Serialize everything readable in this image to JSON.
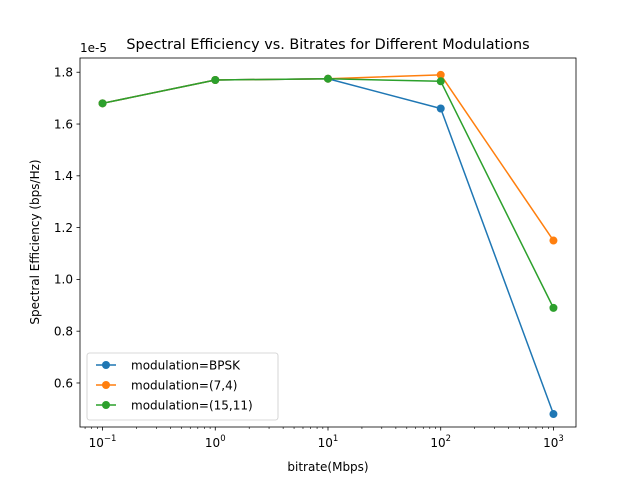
{
  "chart_data": {
    "type": "line",
    "title": "Spectral Efficiency vs. Bitrates for Different Modulations",
    "xlabel": "bitrate(Mbps)",
    "ylabel": "Spectral Efficiency (bps/Hz)",
    "y_offset_text": "1e-5",
    "x_scale": "log",
    "x": [
      0.1,
      1,
      10,
      100,
      1000
    ],
    "xlim": [
      0.0631,
      1585
    ],
    "ylim": [
      0.43,
      1.855
    ],
    "x_ticks": [
      {
        "value": 0.1,
        "base": "10",
        "exp": "−1"
      },
      {
        "value": 1,
        "base": "10",
        "exp": "0"
      },
      {
        "value": 10,
        "base": "10",
        "exp": "1"
      },
      {
        "value": 100,
        "base": "10",
        "exp": "2"
      },
      {
        "value": 1000,
        "base": "10",
        "exp": "3"
      }
    ],
    "y_ticks": [
      {
        "value": 0.6,
        "label": "0.6"
      },
      {
        "value": 0.8,
        "label": "0.8"
      },
      {
        "value": 1.0,
        "label": "1.0"
      },
      {
        "value": 1.2,
        "label": "1.2"
      },
      {
        "value": 1.4,
        "label": "1.4"
      },
      {
        "value": 1.6,
        "label": "1.6"
      },
      {
        "value": 1.8,
        "label": "1.8"
      }
    ],
    "grid": false,
    "legend_position": "lower-left",
    "series": [
      {
        "name": "modulation=BPSK",
        "color": "#1f77b4",
        "values": [
          1.68,
          1.77,
          1.775,
          1.66,
          0.48
        ]
      },
      {
        "name": "modulation=(7,4)",
        "color": "#ff7f0e",
        "values": [
          1.68,
          1.77,
          1.775,
          1.79,
          1.15
        ]
      },
      {
        "name": "modulation=(15,11)",
        "color": "#2ca02c",
        "values": [
          1.68,
          1.77,
          1.775,
          1.765,
          0.89
        ]
      }
    ]
  }
}
